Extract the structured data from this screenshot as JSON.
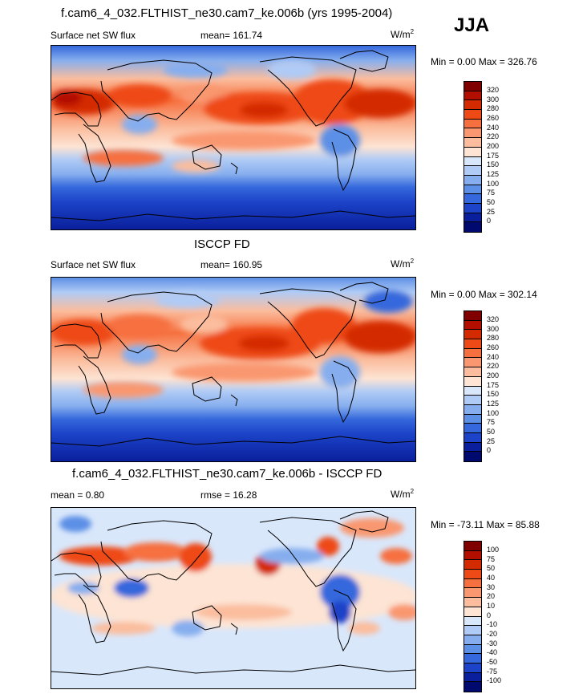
{
  "season": "JJA",
  "panels": [
    {
      "id": "model",
      "title": "f.cam6_4_032.FLTHIST_ne30.cam7_ke.006b (yrs 1995-2004)",
      "left_label": "Surface net SW flux",
      "center_label": "mean= 161.74",
      "units": "W/m",
      "units_sup": "2",
      "minmax": "Min =   0.00 Max = 326.76",
      "colorbar_levels": [
        "320",
        "300",
        "280",
        "260",
        "240",
        "220",
        "200",
        "175",
        "150",
        "125",
        "100",
        "75",
        "50",
        "25",
        "0"
      ]
    },
    {
      "id": "obs",
      "title": "ISCCP FD",
      "left_label": "Surface net SW flux",
      "center_label": "mean= 160.95",
      "units": "W/m",
      "units_sup": "2",
      "minmax": "Min =   0.00 Max = 302.14",
      "colorbar_levels": [
        "320",
        "300",
        "280",
        "260",
        "240",
        "220",
        "200",
        "175",
        "150",
        "125",
        "100",
        "75",
        "50",
        "25",
        "0"
      ]
    },
    {
      "id": "diff",
      "title": "f.cam6_4_032.FLTHIST_ne30.cam7_ke.006b - ISCCP FD",
      "left_label": "mean =   0.80",
      "center_label": "rmse =  16.28",
      "units": "W/m",
      "units_sup": "2",
      "minmax": "Min = -73.11 Max =  85.88",
      "colorbar_levels": [
        "100",
        "75",
        "50",
        "40",
        "30",
        "20",
        "10",
        "0",
        "-10",
        "-20",
        "-30",
        "-40",
        "-50",
        "-75",
        "-100"
      ]
    }
  ],
  "colors": {
    "abs_scale": [
      "#800000",
      "#b30f00",
      "#d42a00",
      "#ee4a16",
      "#f6703f",
      "#f99770",
      "#fbbd9e",
      "#fde4d4",
      "#d9e7fb",
      "#b0cbf5",
      "#86aeee",
      "#5c8fe6",
      "#3568dc",
      "#1c43c8",
      "#0a1f9c",
      "#000a6e"
    ],
    "diff_scale": [
      "#800000",
      "#b30f00",
      "#d42a00",
      "#ee4a16",
      "#f6703f",
      "#f99770",
      "#fbbd9e",
      "#fde4d4",
      "#d9e7fb",
      "#b0cbf5",
      "#86aeee",
      "#5c8fe6",
      "#3568dc",
      "#1c43c8",
      "#0a1f9c",
      "#000a6e"
    ],
    "coastline": "#000000"
  },
  "chart_data": [
    {
      "type": "heatmap",
      "title": "f.cam6_4_032.FLTHIST_ne30.cam7_ke.006b (yrs 1995-2004)",
      "field": "Surface net SW flux",
      "units": "W/m2",
      "mean": 161.74,
      "min": 0.0,
      "max": 326.76,
      "levels": [
        0,
        25,
        50,
        75,
        100,
        125,
        150,
        175,
        200,
        220,
        240,
        260,
        280,
        300,
        320
      ]
    },
    {
      "type": "heatmap",
      "title": "ISCCP FD",
      "field": "Surface net SW flux",
      "units": "W/m2",
      "mean": 160.95,
      "min": 0.0,
      "max": 302.14,
      "levels": [
        0,
        25,
        50,
        75,
        100,
        125,
        150,
        175,
        200,
        220,
        240,
        260,
        280,
        300,
        320
      ]
    },
    {
      "type": "heatmap",
      "title": "f.cam6_4_032.FLTHIST_ne30.cam7_ke.006b - ISCCP FD",
      "units": "W/m2",
      "mean": 0.8,
      "rmse": 16.28,
      "min": -73.11,
      "max": 85.88,
      "levels": [
        -100,
        -75,
        -50,
        -40,
        -30,
        -20,
        -10,
        0,
        10,
        20,
        30,
        40,
        50,
        75,
        100
      ]
    }
  ]
}
